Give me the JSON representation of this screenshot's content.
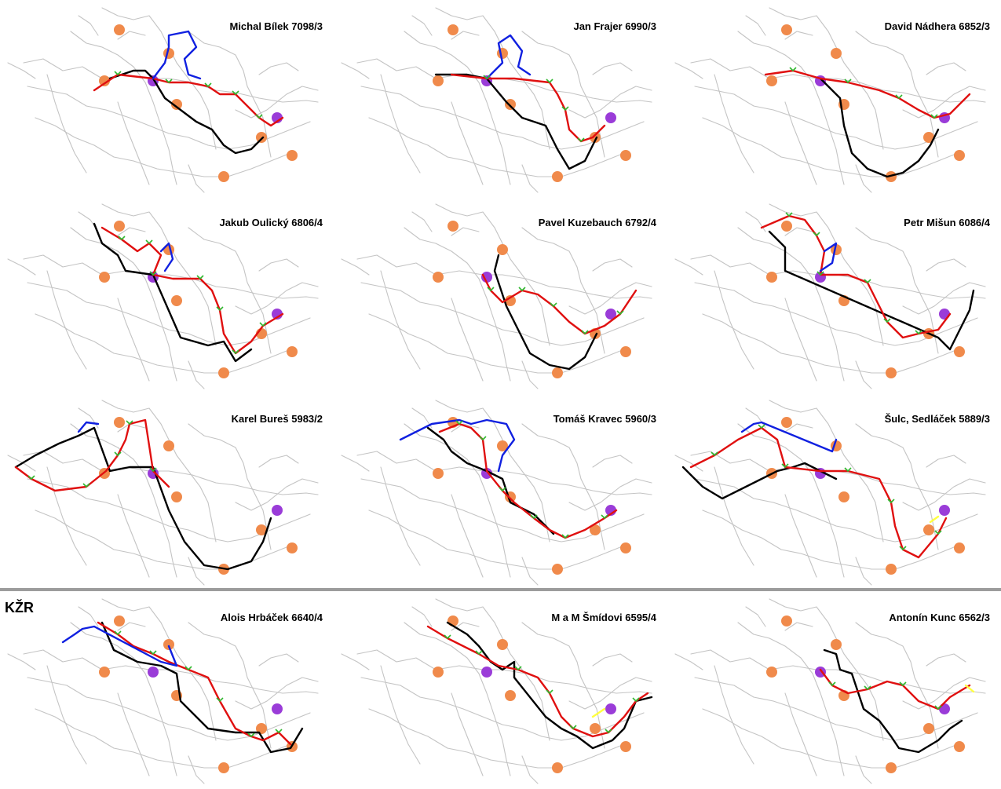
{
  "section_label": "KŽR",
  "legend_colors": {
    "network": "#c4c4c4",
    "route_red": "#e01010",
    "route_black": "#000000",
    "route_blue": "#1020e0",
    "route_yellow": "#ffff40",
    "checkpoint_orange": "#f08a4b",
    "checkpoint_purple": "#9a3cd8",
    "direction_marks": "#2fb82f"
  },
  "icon_names": {
    "checkpoint": "circle-marker-icon",
    "direction": "arrow-tick-icon"
  },
  "panels": [
    {
      "title": "Michal Bílek 7098/3"
    },
    {
      "title": "Jan Frajer 6990/3"
    },
    {
      "title": "David Nádhera 6852/3"
    },
    {
      "title": "Jakub Oulický 6806/4"
    },
    {
      "title": "Pavel Kuzebauch 6792/4"
    },
    {
      "title": "Petr Mišun 6086/4"
    },
    {
      "title": "Karel Bureš 5983/2"
    },
    {
      "title": "Tomáš Kravec 5960/3"
    },
    {
      "title": "Šulc, Sedláček 5889/3"
    },
    {
      "title": "Alois Hrbáček 6640/4"
    },
    {
      "title": "M a M Šmídovi 6595/4"
    },
    {
      "title": "Antonín Kunc 6562/3"
    }
  ]
}
